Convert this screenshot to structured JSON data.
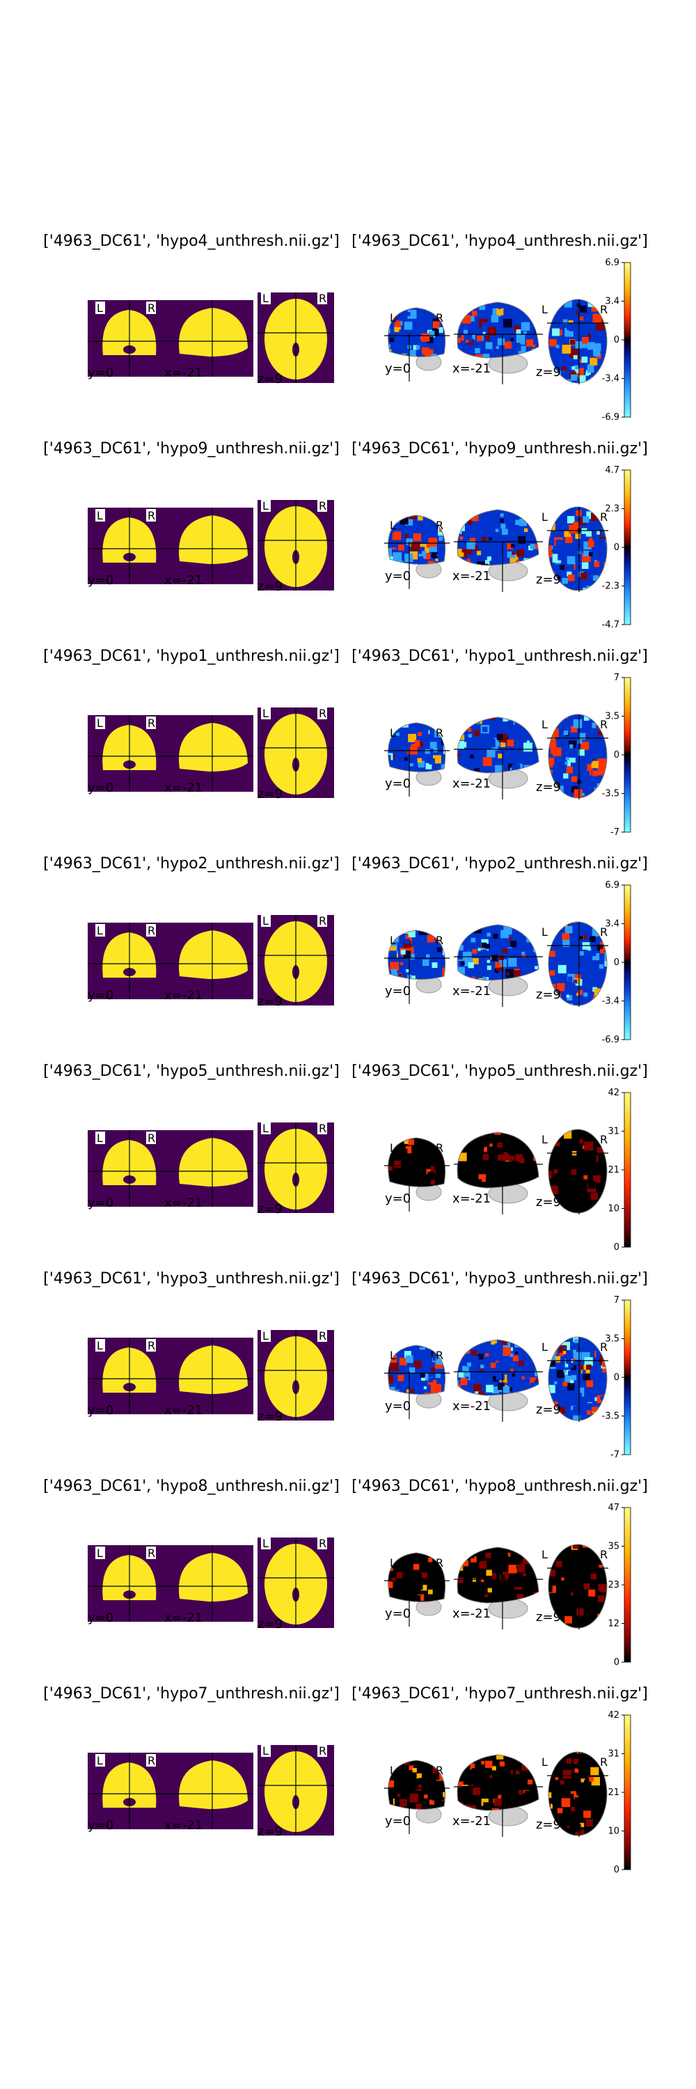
{
  "figure": {
    "rows": [
      {
        "left_title": "['4963_DC61', 'hypo4_unthresh.nii.gz']",
        "right_title": "['4963_DC61', 'hypo4_unthresh.nii.gz']",
        "colorbar": {
          "type": "diverging",
          "ticks": [
            "6.9",
            "3.4",
            "0",
            "-3.4",
            "-6.9"
          ]
        }
      },
      {
        "left_title": "['4963_DC61', 'hypo9_unthresh.nii.gz']",
        "right_title": "['4963_DC61', 'hypo9_unthresh.nii.gz']",
        "colorbar": {
          "type": "diverging",
          "ticks": [
            "4.7",
            "2.3",
            "0",
            "-2.3",
            "-4.7"
          ]
        }
      },
      {
        "left_title": "['4963_DC61', 'hypo1_unthresh.nii.gz']",
        "right_title": "['4963_DC61', 'hypo1_unthresh.nii.gz']",
        "colorbar": {
          "type": "diverging",
          "ticks": [
            "7",
            "3.5",
            "0",
            "-3.5",
            "-7"
          ]
        }
      },
      {
        "left_title": "['4963_DC61', 'hypo2_unthresh.nii.gz']",
        "right_title": "['4963_DC61', 'hypo2_unthresh.nii.gz']",
        "colorbar": {
          "type": "diverging",
          "ticks": [
            "6.9",
            "3.4",
            "0",
            "-3.4",
            "-6.9"
          ]
        }
      },
      {
        "left_title": "['4963_DC61', 'hypo5_unthresh.nii.gz']",
        "right_title": "['4963_DC61', 'hypo5_unthresh.nii.gz']",
        "colorbar": {
          "type": "sequential",
          "ticks": [
            "42",
            "31",
            "21",
            "10",
            "0"
          ]
        }
      },
      {
        "left_title": "['4963_DC61', 'hypo3_unthresh.nii.gz']",
        "right_title": "['4963_DC61', 'hypo3_unthresh.nii.gz']",
        "colorbar": {
          "type": "diverging",
          "ticks": [
            "7",
            "3.5",
            "0",
            "-3.5",
            "-7"
          ]
        }
      },
      {
        "left_title": "['4963_DC61', 'hypo8_unthresh.nii.gz']",
        "right_title": "['4963_DC61', 'hypo8_unthresh.nii.gz']",
        "colorbar": {
          "type": "sequential",
          "ticks": [
            "47",
            "35",
            "23",
            "12",
            "0"
          ]
        }
      },
      {
        "left_title": "['4963_DC61', 'hypo7_unthresh.nii.gz']",
        "right_title": "['4963_DC61', 'hypo7_unthresh.nii.gz']",
        "colorbar": {
          "type": "sequential",
          "ticks": [
            "42",
            "31",
            "21",
            "10",
            "0"
          ]
        }
      }
    ],
    "coords": {
      "y": "y=0",
      "x": "x=-21",
      "z": "z=9"
    },
    "orientation": {
      "left": "L",
      "right": "R"
    },
    "colors": {
      "mask_bg": "#440154",
      "mask_fg": "#fde725",
      "cmap_hot": [
        "#000000",
        "#800000",
        "#ff3300",
        "#ffb000",
        "#ffff80"
      ],
      "cmap_cold": [
        "#80ffff",
        "#2ea3ff",
        "#0033cc",
        "#000033"
      ]
    }
  }
}
